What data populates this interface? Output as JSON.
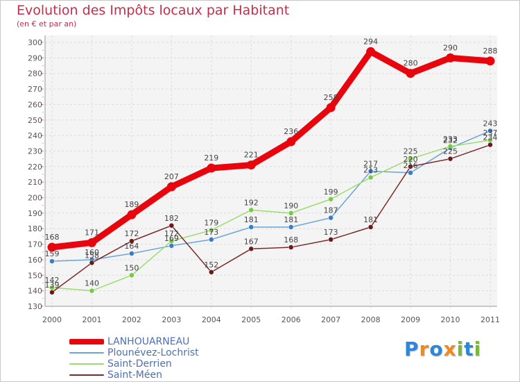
{
  "header": {
    "title": "Evolution des Impôts locaux par Habitant",
    "subtitle": "(en € et par an)"
  },
  "logo": {
    "text": "Proxiti",
    "letters": [
      {
        "ch": "P",
        "color": "#2e86d4"
      },
      {
        "ch": "r",
        "color": "#f08a1c"
      },
      {
        "ch": "o",
        "color": "#2e86d4"
      },
      {
        "ch": "x",
        "color": "#f08a1c"
      },
      {
        "ch": "i",
        "color": "#7ab83a"
      },
      {
        "ch": "t",
        "color": "#2e86d4"
      },
      {
        "ch": "i",
        "color": "#7ab83a"
      }
    ]
  },
  "chart_data": {
    "type": "line",
    "title": "Evolution des Impôts locaux par Habitant",
    "subtitle": "(en € et par an)",
    "xlabel": "",
    "ylabel": "",
    "x": [
      "2000",
      "2001",
      "2002",
      "2003",
      "2004",
      "2005",
      "2006",
      "2007",
      "2008",
      "2009",
      "2010",
      "2011"
    ],
    "ylim": [
      130,
      300
    ],
    "yticks": [
      130,
      140,
      150,
      160,
      170,
      180,
      190,
      200,
      210,
      220,
      230,
      240,
      250,
      260,
      270,
      280,
      290,
      300
    ],
    "grid": "horizontal-dashed",
    "legend_position": "bottom-left",
    "series": [
      {
        "name": "LANHOUARNEAU",
        "color": "#e8060e",
        "emphasis": true,
        "values": [
          168,
          171,
          189,
          207,
          219,
          221,
          236,
          258,
          294,
          280,
          290,
          288
        ],
        "labels": [
          "168",
          "171",
          "189",
          "207",
          "219",
          "221",
          "236",
          "258",
          "294",
          "280",
          "290",
          "288"
        ]
      },
      {
        "name": "Plounévez-Lochrist",
        "color": "#6aa4d8",
        "point_color": "#3a7dc6",
        "values": [
          159,
          160,
          164,
          169,
          173,
          181,
          181,
          187,
          217,
          216,
          232,
          243
        ],
        "labels": [
          "159",
          "160",
          "164",
          "169",
          "173",
          "181",
          "181",
          "187",
          "217",
          "216",
          "232",
          "243"
        ]
      },
      {
        "name": "Saint-Derrien",
        "color": "#9cdc6e",
        "point_color": "#7ac84a",
        "values": [
          142,
          140,
          150,
          172,
          179,
          192,
          190,
          199,
          213,
          225,
          233,
          237
        ],
        "labels": [
          "142",
          "140",
          "150",
          "172",
          "179",
          "192",
          "190",
          "199",
          "213",
          "225",
          "233",
          "237"
        ]
      },
      {
        "name": "Saint-Méen",
        "color": "#7a2a2a",
        "point_color": "#6a1a1a",
        "values": [
          139,
          158,
          172,
          182,
          152,
          167,
          168,
          173,
          181,
          220,
          225,
          234
        ],
        "labels": [
          "139",
          "158",
          "172",
          "182",
          "152",
          "167",
          "168",
          "173",
          "181",
          "220",
          "225",
          "234"
        ]
      }
    ]
  }
}
